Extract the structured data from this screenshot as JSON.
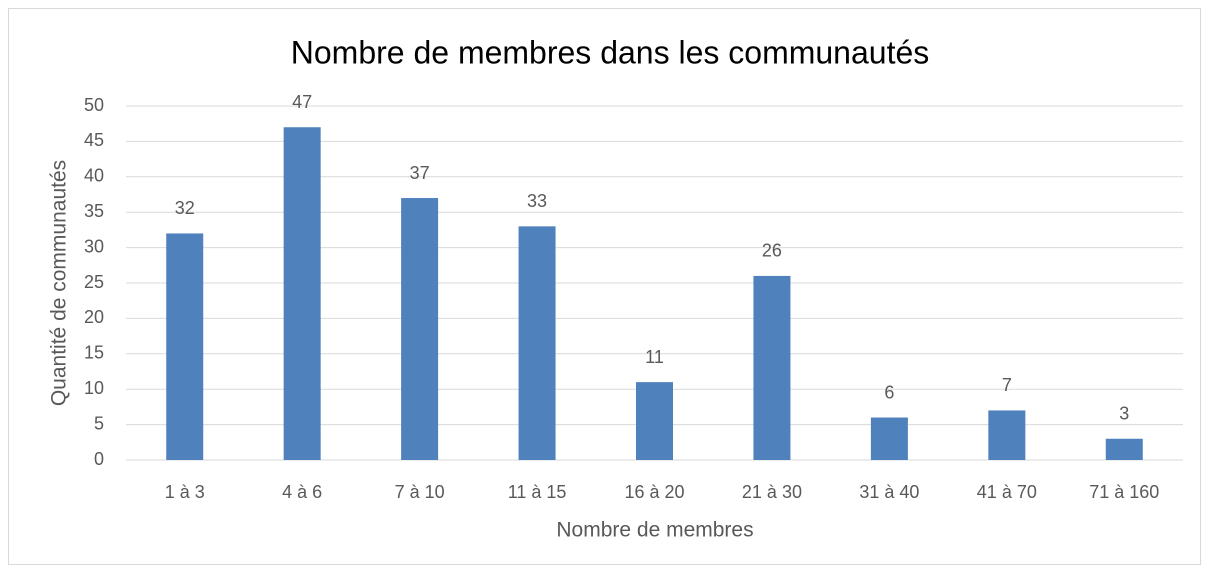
{
  "chart_data": {
    "type": "bar",
    "title": "Nombre de membres dans les communautés",
    "x_label": "Nombre de membres",
    "y_label": "Quantité de communautés",
    "categories": [
      "1 à 3",
      "4 à 6",
      "7 à 10",
      "11 à 15",
      "16 à 20",
      "21 à 30",
      "31 à 40",
      "41 à 70",
      "71 à 160"
    ],
    "values": [
      32,
      47,
      37,
      33,
      11,
      26,
      6,
      7,
      3
    ],
    "color": "#4f81bd",
    "ylim": [
      0,
      50
    ],
    "yticks": [
      0,
      5,
      10,
      15,
      20,
      25,
      30,
      35,
      40,
      45,
      50
    ],
    "grid": true
  }
}
